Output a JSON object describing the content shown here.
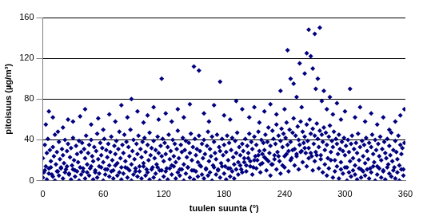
{
  "chart_data": {
    "type": "scatter",
    "x_label": "tuulen suunta (°)",
    "y_label": "pitoisuus (µg/m³)",
    "color": "#000080",
    "marker": "diamond",
    "grid": true,
    "xlim": [
      0,
      360
    ],
    "xticks": [
      0,
      60,
      120,
      180,
      240,
      300,
      360
    ],
    "ylim": [
      0,
      160
    ],
    "yticks": [
      0,
      40,
      80,
      120,
      160
    ],
    "x": [
      0,
      1,
      2,
      3,
      4,
      5,
      6,
      7,
      8,
      9,
      10,
      11,
      12,
      13,
      14,
      15,
      16,
      17,
      18,
      19,
      20,
      21,
      22,
      23,
      24,
      25,
      26,
      27,
      28,
      29,
      30,
      31,
      32,
      33,
      34,
      35,
      36,
      37,
      38,
      39,
      40,
      41,
      42,
      43,
      44,
      45,
      46,
      47,
      48,
      49,
      50,
      51,
      52,
      53,
      54,
      55,
      56,
      57,
      58,
      59,
      60,
      61,
      62,
      63,
      64,
      65,
      66,
      67,
      68,
      69,
      70,
      71,
      72,
      73,
      74,
      75,
      76,
      77,
      78,
      79,
      80,
      81,
      82,
      83,
      84,
      85,
      86,
      87,
      88,
      89,
      90,
      91,
      92,
      93,
      94,
      95,
      96,
      97,
      98,
      99,
      100,
      101,
      102,
      103,
      104,
      105,
      106,
      107,
      108,
      109,
      110,
      111,
      112,
      113,
      114,
      115,
      116,
      117,
      118,
      119,
      120,
      121,
      122,
      123,
      124,
      125,
      126,
      127,
      128,
      129,
      130,
      131,
      132,
      133,
      134,
      135,
      136,
      137,
      138,
      139,
      140,
      141,
      142,
      143,
      144,
      145,
      146,
      147,
      148,
      149,
      150,
      151,
      152,
      153,
      154,
      155,
      156,
      157,
      158,
      159,
      160,
      161,
      162,
      163,
      164,
      165,
      166,
      167,
      168,
      169,
      170,
      171,
      172,
      173,
      174,
      175,
      176,
      177,
      178,
      179,
      180,
      181,
      182,
      183,
      184,
      185,
      186,
      187,
      188,
      189,
      190,
      191,
      192,
      193,
      194,
      195,
      196,
      197,
      198,
      199,
      200,
      201,
      202,
      203,
      204,
      205,
      206,
      207,
      208,
      209,
      210,
      211,
      212,
      213,
      214,
      215,
      216,
      217,
      218,
      219,
      220,
      221,
      222,
      223,
      224,
      225,
      226,
      227,
      228,
      229,
      230,
      231,
      232,
      233,
      234,
      235,
      236,
      237,
      238,
      239,
      240,
      241,
      242,
      243,
      244,
      245,
      246,
      247,
      248,
      249,
      250,
      251,
      252,
      253,
      254,
      255,
      256,
      257,
      258,
      259,
      260,
      261,
      262,
      263,
      264,
      265,
      266,
      267,
      268,
      269,
      270,
      271,
      272,
      273,
      274,
      275,
      276,
      277,
      278,
      279,
      280,
      281,
      282,
      283,
      284,
      285,
      286,
      287,
      288,
      289,
      290,
      291,
      292,
      293,
      294,
      295,
      296,
      297,
      298,
      299,
      300,
      301,
      302,
      303,
      304,
      305,
      306,
      307,
      308,
      309,
      310,
      311,
      312,
      313,
      314,
      315,
      316,
      317,
      318,
      319,
      320,
      321,
      322,
      323,
      324,
      325,
      326,
      327,
      328,
      329,
      330,
      331,
      332,
      333,
      334,
      335,
      336,
      337,
      338,
      339,
      340,
      341,
      342,
      343,
      344,
      345,
      346,
      347,
      348,
      349,
      350,
      351,
      352,
      353,
      354,
      355,
      356,
      357,
      358,
      359,
      0,
      2,
      4,
      6,
      8,
      10,
      12,
      14,
      16,
      18,
      20,
      22,
      24,
      26,
      28,
      30,
      32,
      34,
      36,
      38,
      40,
      42,
      44,
      46,
      48,
      50,
      52,
      54,
      56,
      58,
      60,
      62,
      64,
      66,
      68,
      70,
      72,
      74,
      76,
      78,
      80,
      82,
      84,
      86,
      88,
      90,
      92,
      94,
      96,
      98,
      100,
      102,
      104,
      106,
      108,
      110,
      112,
      114,
      116,
      118,
      120,
      122,
      124,
      126,
      128,
      130,
      132,
      134,
      136,
      138,
      140,
      142,
      144,
      146,
      148,
      150,
      152,
      154,
      156,
      158,
      160,
      162,
      164,
      166,
      168,
      170,
      172,
      174,
      176,
      178,
      180,
      182,
      184,
      186,
      188,
      190,
      192,
      194,
      196,
      198,
      200,
      202,
      204,
      206,
      208,
      210,
      212,
      214,
      216,
      218,
      220,
      222,
      224,
      226,
      228,
      230,
      232,
      234,
      236,
      238,
      240,
      242,
      244,
      246,
      248,
      250,
      252,
      254,
      256,
      258,
      260,
      262,
      264,
      266,
      268,
      270,
      272,
      274,
      276,
      278,
      280,
      282,
      284,
      286,
      288,
      290,
      292,
      294,
      296,
      298,
      300,
      302,
      304,
      306,
      308,
      310,
      312,
      314,
      316,
      318,
      320,
      322,
      324,
      326,
      328,
      330,
      332,
      334,
      336,
      338,
      340,
      342,
      344,
      346,
      348,
      350,
      352,
      354,
      356,
      358,
      3,
      6,
      10,
      15,
      20,
      25,
      30,
      37,
      42,
      48,
      55,
      60,
      66,
      72,
      78,
      84,
      88,
      94,
      100,
      104,
      110,
      115,
      118,
      122,
      128,
      134,
      140,
      146,
      150,
      155,
      160,
      165,
      170,
      176,
      180,
      186,
      192,
      198,
      205,
      210,
      215,
      220,
      226,
      232,
      236,
      240,
      243,
      246,
      249,
      252,
      255,
      257,
      260,
      262,
      264,
      266,
      268,
      270,
      271,
      273,
      275,
      277,
      279,
      282,
      285,
      288,
      292,
      296,
      300,
      305,
      310,
      315,
      320,
      326,
      332,
      338,
      344,
      350,
      355,
      359
    ],
    "values": [
      22,
      8,
      35,
      14,
      27,
      41,
      12,
      30,
      19,
      6,
      33,
      24,
      45,
      16,
      28,
      9,
      38,
      21,
      13,
      31,
      25,
      17,
      40,
      11,
      29,
      36,
      7,
      23,
      32,
      15,
      42,
      20,
      10,
      34,
      26,
      18,
      39,
      13,
      28,
      37,
      9,
      31,
      22,
      44,
      16,
      27,
      35,
      12,
      40,
      24,
      19,
      33,
      8,
      29,
      46,
      21,
      14,
      37,
      25,
      32,
      18,
      41,
      11,
      30,
      23,
      36,
      15,
      28,
      43,
      20,
      10,
      34,
      26,
      39,
      17,
      31,
      48,
      22,
      13,
      35,
      27,
      45,
      19,
      38,
      12,
      33,
      24,
      50,
      16,
      29,
      40,
      21,
      9,
      36,
      26,
      44,
      14,
      31,
      23,
      38,
      17,
      42,
      28,
      11,
      35,
      20,
      47,
      25,
      32,
      13,
      39,
      22,
      30,
      16,
      43,
      27,
      10,
      34,
      24,
      41,
      19,
      37,
      26,
      12,
      33,
      45,
      21,
      29,
      15,
      40,
      24,
      36,
      18,
      31,
      49,
      22,
      11,
      35,
      28,
      42,
      16,
      30,
      39,
      23,
      13,
      37,
      27,
      46,
      20,
      33,
      10,
      41,
      25,
      31,
      18,
      44,
      29,
      14,
      36,
      22,
      40,
      26,
      12,
      34,
      48,
      19,
      31,
      24,
      43,
      15,
      38,
      27,
      21,
      45,
      11,
      33,
      29,
      17,
      41,
      25,
      35,
      14,
      28,
      44,
      20,
      37,
      12,
      30,
      42,
      23,
      16,
      39,
      27,
      47,
      18,
      33,
      25,
      11,
      36,
      29,
      22,
      41,
      15,
      34,
      27,
      46,
      19,
      38,
      31,
      13,
      43,
      24,
      35,
      20,
      48,
      29,
      16,
      40,
      26,
      37,
      30,
      45,
      21,
      38,
      52,
      27,
      34,
      16,
      49,
      41,
      25,
      36,
      55,
      28,
      44,
      19,
      39,
      51,
      33,
      46,
      24,
      42,
      57,
      35,
      29,
      50,
      38,
      22,
      47,
      61,
      31,
      44,
      26,
      53,
      40,
      35,
      58,
      29,
      48,
      37,
      43,
      27,
      55,
      39,
      32,
      60,
      46,
      24,
      51,
      36,
      44,
      28,
      56,
      41,
      33,
      49,
      25,
      45,
      38,
      52,
      30,
      47,
      35,
      22,
      43,
      54,
      28,
      39,
      33,
      48,
      20,
      41,
      36,
      26,
      45,
      31,
      18,
      38,
      29,
      42,
      25,
      34,
      13,
      40,
      28,
      19,
      36,
      44,
      22,
      31,
      15,
      37,
      27,
      46,
      20,
      33,
      11,
      39,
      24,
      35,
      17,
      42,
      29,
      21,
      37,
      12,
      33,
      45,
      26,
      18,
      40,
      30,
      14,
      36,
      24,
      43,
      20,
      31,
      10,
      38,
      27,
      22,
      41,
      16,
      34,
      25,
      47,
      19,
      30,
      13,
      39,
      28,
      21,
      44,
      15,
      35,
      26,
      32,
      11,
      37,
      3,
      10,
      1,
      7,
      13,
      4,
      0,
      9,
      5,
      12,
      2,
      8,
      14,
      6,
      1,
      11,
      4,
      9,
      0,
      6,
      12,
      2,
      8,
      5,
      14,
      1,
      10,
      3,
      7,
      13,
      0,
      6,
      11,
      4,
      9,
      2,
      15,
      5,
      8,
      1,
      7,
      13,
      3,
      10,
      0,
      6,
      12,
      4,
      9,
      2,
      14,
      5,
      8,
      1,
      11,
      3,
      7,
      13,
      0,
      10,
      4,
      9,
      1,
      12,
      6,
      14,
      2,
      8,
      5,
      11,
      0,
      7,
      13,
      3,
      10,
      1,
      9,
      4,
      15,
      6,
      2,
      11,
      5,
      8,
      0,
      13,
      6,
      10,
      3,
      14,
      7,
      1,
      12,
      4,
      9,
      2,
      11,
      6,
      15,
      8,
      18,
      9,
      22,
      14,
      6,
      20,
      12,
      25,
      8,
      17,
      23,
      10,
      19,
      5,
      16,
      21,
      11,
      24,
      7,
      15,
      13,
      26,
      9,
      20,
      30,
      15,
      24,
      11,
      28,
      18,
      32,
      14,
      22,
      27,
      10,
      19,
      25,
      12,
      21,
      8,
      16,
      5,
      12,
      20,
      3,
      9,
      14,
      2,
      11,
      7,
      13,
      0,
      8,
      4,
      10,
      6,
      1,
      12,
      3,
      9,
      5,
      11,
      2,
      8,
      14,
      0,
      6,
      12,
      3,
      9,
      1,
      13,
      7,
      4,
      10,
      2,
      8,
      0,
      11,
      5,
      55,
      68,
      62,
      48,
      52,
      60,
      58,
      63,
      70,
      55,
      61,
      50,
      65,
      58,
      74,
      62,
      80,
      68,
      57,
      64,
      72,
      60,
      100,
      66,
      58,
      70,
      62,
      75,
      112,
      108,
      66,
      58,
      74,
      97,
      64,
      60,
      78,
      70,
      62,
      72,
      57,
      68,
      75,
      65,
      88,
      70,
      128,
      100,
      95,
      82,
      115,
      72,
      105,
      125,
      148,
      122,
      110,
      144,
      90,
      100,
      150,
      78,
      88,
      70,
      82,
      65,
      76,
      60,
      68,
      90,
      62,
      72,
      58,
      66,
      55,
      62,
      50,
      58,
      64,
      70
    ]
  }
}
